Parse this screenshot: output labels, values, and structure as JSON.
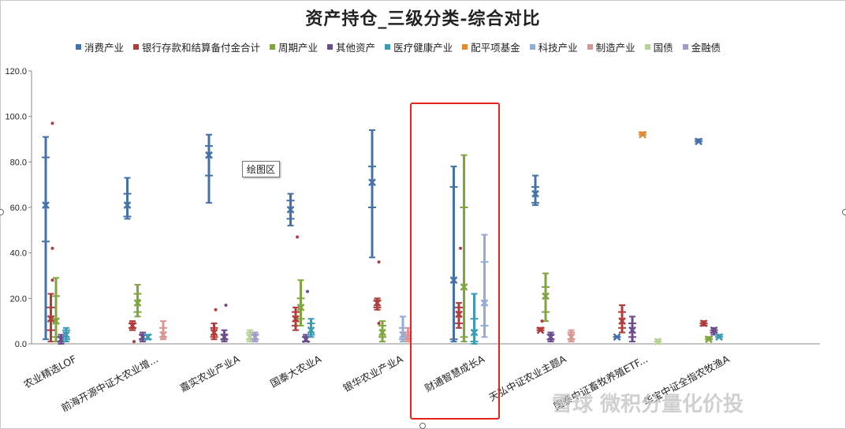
{
  "chart_data": {
    "type": "scatter",
    "title": "资产持仓_三级分类-综合对比",
    "ylim": [
      0,
      120
    ],
    "yticks": [
      "0.0",
      "20.0",
      "40.0",
      "60.0",
      "80.0",
      "100.0",
      "120.0"
    ],
    "legend_position": "top",
    "grid": false,
    "categories": [
      "农业精选LOF",
      "前海开源中证大农业增...",
      "嘉实农业产业A",
      "国泰大农业A",
      "银华农业产业A",
      "财通智慧成长A",
      "天弘中证农业主题A",
      "国泰中证畜牧养殖ETF...",
      "华宝中证全指农牧渔A"
    ],
    "series": [
      {
        "name": "消费产业",
        "color": "#4472a8",
        "data": [
          [
            1,
            91,
            82,
            61,
            45,
            2
          ],
          [
            2,
            73,
            66,
            61,
            56,
            55
          ],
          [
            3,
            92,
            87,
            83,
            74,
            62
          ],
          [
            4,
            66,
            63,
            59,
            55,
            52
          ],
          [
            5,
            94,
            78,
            71,
            60,
            38
          ],
          [
            6,
            78,
            69,
            28,
            2,
            1
          ],
          [
            7,
            74,
            69,
            66,
            62,
            61
          ],
          [
            8,
            3,
            3,
            3,
            3,
            3
          ],
          [
            9,
            90,
            90,
            89,
            89,
            89
          ]
        ]
      },
      {
        "name": "银行存款和结算备付金合计",
        "color": "#b23c3c",
        "data": [
          [
            1,
            22,
            16,
            11,
            6,
            1
          ],
          [
            2,
            10,
            9,
            8,
            7,
            6
          ],
          [
            3,
            9,
            7,
            5,
            3,
            2
          ],
          [
            4,
            16,
            14,
            11,
            8,
            6
          ],
          [
            5,
            20,
            19,
            18,
            16,
            15
          ],
          [
            6,
            18,
            16,
            13,
            9,
            7
          ],
          [
            7,
            7,
            7,
            6,
            6,
            6
          ],
          [
            8,
            17,
            14,
            10,
            7,
            5
          ],
          [
            9,
            10,
            9,
            9,
            8,
            8
          ]
        ]
      },
      {
        "name": "周期产业",
        "color": "#7fa53f",
        "data": [
          [
            1,
            29,
            21,
            10,
            3,
            1
          ],
          [
            2,
            26,
            22,
            18,
            14,
            12
          ],
          [
            3,
            null,
            null,
            null,
            null,
            null
          ],
          [
            4,
            28,
            20,
            16,
            11,
            8
          ],
          [
            5,
            10,
            8,
            5,
            3,
            1
          ],
          [
            6,
            83,
            60,
            25,
            3,
            1
          ],
          [
            7,
            31,
            25,
            21,
            14,
            10
          ],
          [
            8,
            null,
            null,
            null,
            null,
            null
          ],
          [
            9,
            3,
            3,
            2,
            2,
            2
          ]
        ]
      },
      {
        "name": "其他资产",
        "color": "#6b4c8c",
        "data": [
          [
            1,
            4,
            3,
            2,
            1,
            0
          ],
          [
            2,
            5,
            4,
            3,
            2,
            1
          ],
          [
            3,
            6,
            4,
            3,
            2,
            1
          ],
          [
            4,
            4,
            3,
            2,
            1,
            1
          ],
          [
            5,
            null,
            null,
            null,
            null,
            null
          ],
          [
            6,
            null,
            null,
            null,
            null,
            null
          ],
          [
            7,
            5,
            4,
            3,
            2,
            1
          ],
          [
            8,
            12,
            9,
            6,
            3,
            1
          ],
          [
            9,
            7,
            6,
            6,
            5,
            4
          ]
        ]
      },
      {
        "name": "医疗健康产业",
        "color": "#3a9bb5",
        "data": [
          [
            1,
            7,
            6,
            4,
            2,
            1
          ],
          [
            2,
            4,
            4,
            3,
            2,
            2
          ],
          [
            3,
            null,
            null,
            null,
            null,
            null
          ],
          [
            4,
            11,
            9,
            6,
            4,
            3
          ],
          [
            5,
            null,
            null,
            null,
            null,
            null
          ],
          [
            6,
            22,
            11,
            5,
            1,
            0
          ],
          [
            7,
            null,
            null,
            null,
            null,
            null
          ],
          [
            8,
            null,
            null,
            null,
            null,
            null
          ],
          [
            9,
            4,
            4,
            3,
            3,
            3
          ]
        ]
      },
      {
        "name": "配平项基金",
        "color": "#e08a35",
        "data": [
          [
            1,
            null,
            null,
            null,
            null,
            null
          ],
          [
            2,
            null,
            null,
            null,
            null,
            null
          ],
          [
            3,
            null,
            null,
            null,
            null,
            null
          ],
          [
            4,
            null,
            null,
            null,
            null,
            null
          ],
          [
            5,
            null,
            null,
            null,
            null,
            null
          ],
          [
            6,
            null,
            null,
            null,
            null,
            null
          ],
          [
            7,
            null,
            null,
            null,
            null,
            null
          ],
          [
            8,
            93,
            93,
            92,
            92,
            92
          ],
          [
            9,
            null,
            null,
            null,
            null,
            null
          ]
        ]
      },
      {
        "name": "科技产业",
        "color": "#94acd4",
        "data": [
          [
            1,
            null,
            null,
            null,
            null,
            null
          ],
          [
            2,
            null,
            null,
            null,
            null,
            null
          ],
          [
            3,
            null,
            null,
            null,
            null,
            null
          ],
          [
            4,
            null,
            null,
            null,
            null,
            null
          ],
          [
            5,
            12,
            7,
            4,
            2,
            1
          ],
          [
            6,
            48,
            36,
            18,
            8,
            3
          ],
          [
            7,
            null,
            null,
            null,
            null,
            null
          ],
          [
            8,
            null,
            null,
            null,
            null,
            null
          ],
          [
            9,
            null,
            null,
            null,
            null,
            null
          ]
        ]
      },
      {
        "name": "制造产业",
        "color": "#d99594",
        "data": [
          [
            1,
            null,
            null,
            null,
            null,
            null
          ],
          [
            2,
            10,
            7,
            4,
            3,
            2
          ],
          [
            3,
            null,
            null,
            null,
            null,
            null
          ],
          [
            4,
            null,
            null,
            null,
            null,
            null
          ],
          [
            5,
            7,
            5,
            3,
            2,
            1
          ],
          [
            6,
            null,
            null,
            null,
            null,
            null
          ],
          [
            7,
            6,
            5,
            3,
            2,
            1
          ],
          [
            8,
            null,
            null,
            null,
            null,
            null
          ],
          [
            9,
            null,
            null,
            null,
            null,
            null
          ]
        ]
      },
      {
        "name": "国债",
        "color": "#b8d39a",
        "data": [
          [
            1,
            null,
            null,
            null,
            null,
            null
          ],
          [
            2,
            null,
            null,
            null,
            null,
            null
          ],
          [
            3,
            6,
            5,
            3,
            2,
            1
          ],
          [
            4,
            null,
            null,
            null,
            null,
            null
          ],
          [
            5,
            null,
            null,
            null,
            null,
            null
          ],
          [
            6,
            null,
            null,
            null,
            null,
            null
          ],
          [
            7,
            null,
            null,
            null,
            null,
            null
          ],
          [
            8,
            2,
            1,
            1,
            1,
            0
          ],
          [
            9,
            null,
            null,
            null,
            null,
            null
          ]
        ]
      },
      {
        "name": "金融债",
        "color": "#a09cc7",
        "data": [
          [
            1,
            null,
            null,
            null,
            null,
            null
          ],
          [
            2,
            null,
            null,
            null,
            null,
            null
          ],
          [
            3,
            5,
            4,
            3,
            2,
            1
          ],
          [
            4,
            null,
            null,
            null,
            null,
            null
          ],
          [
            5,
            null,
            null,
            null,
            null,
            null
          ],
          [
            6,
            null,
            null,
            null,
            null,
            null
          ],
          [
            7,
            null,
            null,
            null,
            null,
            null
          ],
          [
            8,
            null,
            null,
            null,
            null,
            null
          ],
          [
            9,
            null,
            null,
            null,
            null,
            null
          ]
        ]
      }
    ],
    "outliers": [
      {
        "series": "银行存款和结算备付金合计",
        "x": 1,
        "y": 97
      },
      {
        "series": "银行存款和结算备付金合计",
        "x": 1,
        "y": 42
      },
      {
        "series": "银行存款和结算备付金合计",
        "x": 1,
        "y": 28
      },
      {
        "series": "银行存款和结算备付金合计",
        "x": 2,
        "y": 1
      },
      {
        "series": "银行存款和结算备付金合计",
        "x": 3,
        "y": 15
      },
      {
        "series": "银行存款和结算备付金合计",
        "x": 4,
        "y": 47
      },
      {
        "series": "银行存款和结算备付金合计",
        "x": 5,
        "y": 36
      },
      {
        "series": "银行存款和结算备付金合计",
        "x": 5,
        "y": 9
      },
      {
        "series": "银行存款和结算备付金合计",
        "x": 6,
        "y": 42
      },
      {
        "series": "银行存款和结算备付金合计",
        "x": 7,
        "y": 10
      },
      {
        "series": "其他资产",
        "x": 3,
        "y": 17
      },
      {
        "series": "其他资产",
        "x": 4,
        "y": 23
      },
      {
        "series": "周期产业",
        "x": 2,
        "y": 19
      }
    ]
  },
  "tooltip": "绘图区",
  "watermark": "雪球 微积分量化价投"
}
